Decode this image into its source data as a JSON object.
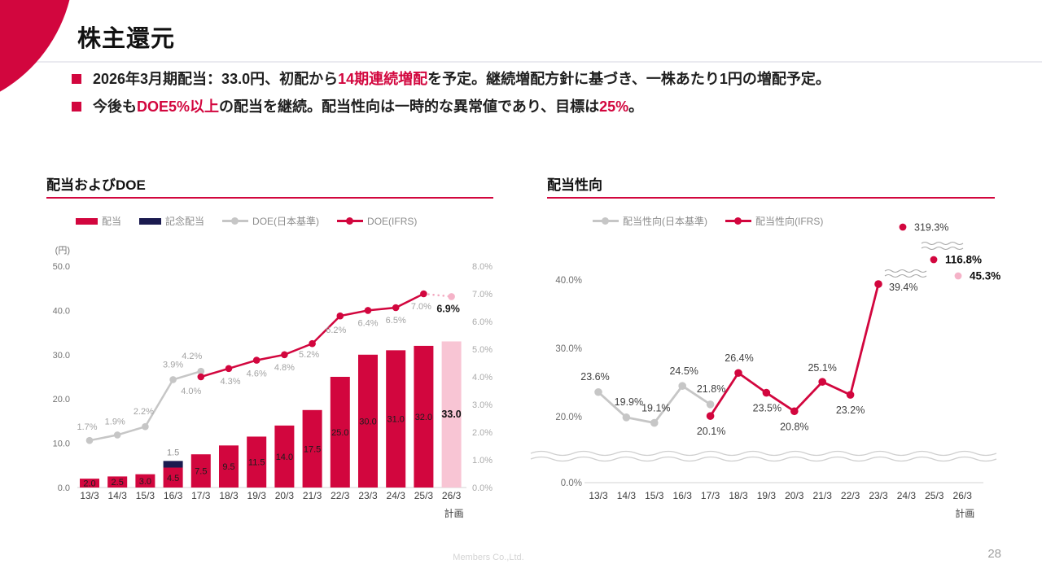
{
  "slide": {
    "title": "株主還元",
    "bullets": [
      {
        "segments": [
          {
            "text": "2026年3月期配当：33.0円、初配から",
            "accent": false
          },
          {
            "text": "14期連続増配",
            "accent": true
          },
          {
            "text": "を予定。継続増配方針に基づき、一株あたり1円の増配予定。",
            "accent": false
          }
        ]
      },
      {
        "segments": [
          {
            "text": "今後も",
            "accent": false
          },
          {
            "text": "DOE5%以上",
            "accent": true
          },
          {
            "text": "の配当を継続。配当性向は一時的な異常値であり、目標は",
            "accent": false
          },
          {
            "text": "25%",
            "accent": true
          },
          {
            "text": "。",
            "accent": false
          }
        ]
      }
    ],
    "footer": "Members Co.,Ltd.",
    "page_number": "28"
  },
  "colors": {
    "accent": "#D2063E",
    "plan_pink": "#F8C5D4",
    "plan_dot_pink": "#F5B3C8",
    "navy": "#1A1A4F",
    "gray_line": "#C6C6C6",
    "gray_label": "#A3A3A3",
    "axis_text": "#737373",
    "dark_text": "#1C1C1C"
  },
  "chart_data": [
    {
      "type": "bar+line",
      "title": "配当およびDOE",
      "unit_label": "(円)",
      "categories": [
        "13/3",
        "14/3",
        "15/3",
        "16/3",
        "17/3",
        "18/3",
        "19/3",
        "20/3",
        "21/3",
        "22/3",
        "23/3",
        "24/3",
        "25/3",
        "26/3"
      ],
      "plan_sublabel": "計画",
      "legend": [
        "配当",
        "記念配当",
        "DOE(日本基準)",
        "DOE(IFRS)"
      ],
      "left_axis": {
        "title": "(円)",
        "ticks": [
          "0.0",
          "10.0",
          "20.0",
          "30.0",
          "40.0",
          "50.0"
        ],
        "values": [
          0,
          10,
          20,
          30,
          40,
          50
        ],
        "range": [
          0,
          50
        ]
      },
      "right_axis": {
        "ticks": [
          "0.0%",
          "1.0%",
          "2.0%",
          "3.0%",
          "4.0%",
          "5.0%",
          "6.0%",
          "7.0%",
          "8.0%"
        ],
        "values": [
          0,
          1,
          2,
          3,
          4,
          5,
          6,
          7,
          8
        ],
        "range": [
          0,
          8
        ]
      },
      "dividend_bars": {
        "name": "配当",
        "values": [
          2.0,
          2.5,
          3.0,
          4.5,
          7.5,
          9.5,
          11.5,
          14.0,
          17.5,
          25.0,
          30.0,
          31.0,
          32.0,
          33.0
        ],
        "labels": [
          "2.0",
          "2.5",
          "3.0",
          "4.5",
          "7.5",
          "9.5",
          "11.5",
          "14.0",
          "17.5",
          "25.0",
          "30.0",
          "31.0",
          "32.0",
          "33.0"
        ],
        "plan_index": 13
      },
      "commemorative_bar": {
        "name": "記念配当",
        "category": "16/3",
        "index": 3,
        "value": 1.5,
        "label": "1.5"
      },
      "doe_japan": {
        "name": "DOE(日本基準)",
        "start_index": 0,
        "values": [
          1.7,
          1.9,
          2.2,
          3.9,
          4.2
        ],
        "labels": [
          "1.7%",
          "1.9%",
          "2.2%",
          "3.9%",
          "4.2%"
        ]
      },
      "doe_ifrs": {
        "name": "DOE(IFRS)",
        "start_index": 4,
        "values": [
          4.0,
          4.3,
          4.6,
          4.8,
          5.2,
          6.2,
          6.4,
          6.5,
          7.0
        ],
        "labels": [
          "4.0%",
          "4.3%",
          "4.6%",
          "4.8%",
          "5.2%",
          "6.2%",
          "6.4%",
          "6.5%",
          "7.0%"
        ],
        "plan": {
          "index": 13,
          "value": 6.9,
          "label": "6.9%"
        }
      }
    },
    {
      "type": "line",
      "title": "配当性向",
      "categories": [
        "13/3",
        "14/3",
        "15/3",
        "16/3",
        "17/3",
        "18/3",
        "19/3",
        "20/3",
        "21/3",
        "22/3",
        "23/3",
        "24/3",
        "25/3",
        "26/3"
      ],
      "plan_sublabel": "計画",
      "legend": [
        "配当性向(日本基準)",
        "配当性向(IFRS)"
      ],
      "y_axis": {
        "ticks": [
          "0.0%",
          "20.0%",
          "30.0%",
          "40.0%"
        ],
        "values": [
          0,
          20,
          30,
          40
        ],
        "broken_axis": true
      },
      "payout_japan": {
        "name": "配当性向(日本基準)",
        "start_index": 0,
        "values": [
          23.6,
          19.9,
          19.1,
          24.5,
          21.8
        ],
        "labels": [
          "23.6%",
          "19.9%",
          "19.1%",
          "24.5%",
          "21.8%"
        ]
      },
      "payout_ifrs": {
        "name": "配当性向(IFRS)",
        "start_index": 4,
        "values": [
          20.1,
          26.4,
          23.5,
          20.8,
          25.1,
          23.2,
          39.4
        ],
        "labels": [
          "20.1%",
          "26.4%",
          "23.5%",
          "20.8%",
          "25.1%",
          "23.2%",
          "39.4%"
        ]
      },
      "off_scale_points": [
        {
          "category": "24/3",
          "value": 319.3,
          "label": "319.3%",
          "bold": false,
          "plan": false
        },
        {
          "category": "25/3",
          "value": 116.8,
          "label": "116.8%",
          "bold": true,
          "plan": false
        },
        {
          "category": "26/3",
          "value": 45.3,
          "label": "45.3%",
          "bold": true,
          "plan": true
        }
      ]
    }
  ]
}
